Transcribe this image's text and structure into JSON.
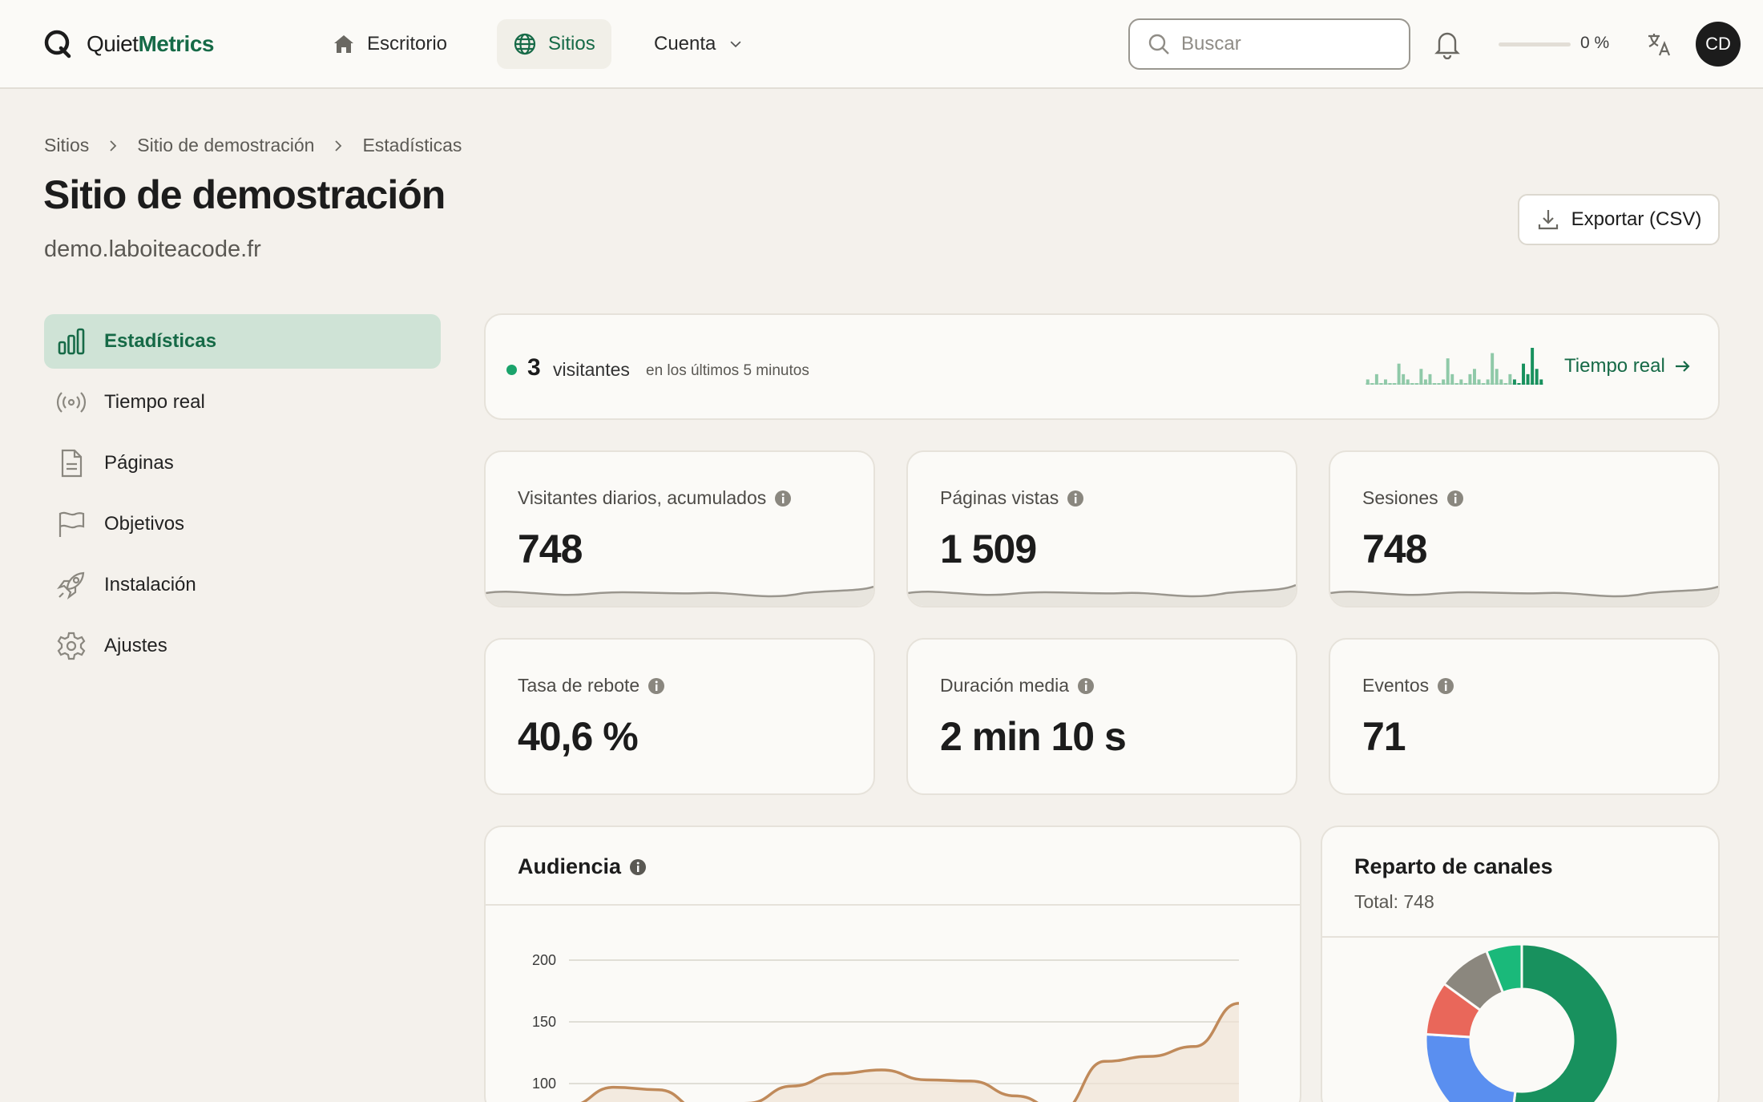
{
  "header": {
    "logo": {
      "prefix": "Quiet",
      "suffix": "Metrics"
    },
    "nav": [
      {
        "label": "Escritorio",
        "icon": "home-icon"
      },
      {
        "label": "Sitios",
        "icon": "globe-icon",
        "active": true
      },
      {
        "label": "Cuenta",
        "icon": "chevron-down-icon"
      }
    ],
    "search": {
      "placeholder": "Buscar",
      "value": ""
    },
    "progress": {
      "label": "0 %",
      "value": 0
    },
    "avatar": "CD"
  },
  "breadcrumb": [
    "Sitios",
    "Sitio de demostración",
    "Estadísticas"
  ],
  "page": {
    "title": "Sitio de demostración",
    "domain": "demo.laboiteacode.fr",
    "export_label": "Exportar (CSV)"
  },
  "sidebar": {
    "items": [
      {
        "label": "Estadísticas",
        "icon": "bar-chart-icon",
        "active": true
      },
      {
        "label": "Tiempo real",
        "icon": "broadcast-icon"
      },
      {
        "label": "Páginas",
        "icon": "document-icon"
      },
      {
        "label": "Objetivos",
        "icon": "flag-icon"
      },
      {
        "label": "Instalación",
        "icon": "rocket-icon"
      },
      {
        "label": "Ajustes",
        "icon": "gear-icon"
      }
    ]
  },
  "realtime": {
    "count": "3",
    "label": "visitantes",
    "sub": "en los últimos 5 minutos",
    "link": "Tiempo real",
    "bars": [
      1,
      0,
      2,
      0,
      1,
      0,
      0,
      4,
      2,
      1,
      0,
      0,
      3,
      1,
      2,
      0,
      0,
      1,
      5,
      2,
      0,
      1,
      0,
      2,
      3,
      1,
      0,
      1,
      6,
      3,
      1,
      0,
      2,
      1,
      0,
      4,
      2,
      7,
      3,
      1
    ]
  },
  "stats": [
    {
      "label": "Visitantes diarios, acumulados",
      "value": "748"
    },
    {
      "label": "Páginas vistas",
      "value": "1 509"
    },
    {
      "label": "Sesiones",
      "value": "748"
    },
    {
      "label": "Tasa de rebote",
      "value": "40,6 %"
    },
    {
      "label": "Duración media",
      "value": "2 min 10 s"
    },
    {
      "label": "Eventos",
      "value": "71"
    }
  ],
  "audience": {
    "title": "Audiencia",
    "chart_data": {
      "type": "area",
      "yticks": [
        200,
        150,
        100
      ],
      "ylim": [
        0,
        200
      ],
      "values": [
        82,
        97,
        95,
        78,
        84,
        98,
        108,
        111,
        103,
        102,
        90,
        78,
        118,
        122,
        130,
        165
      ]
    }
  },
  "channels": {
    "title": "Reparto de canales",
    "total": "Total: 748",
    "chart_data": {
      "type": "pie",
      "segments": [
        {
          "value": 0.52,
          "color": "#18915e"
        },
        {
          "value": 0.24,
          "color": "#5a8ff0"
        },
        {
          "value": 0.09,
          "color": "#e9675a"
        },
        {
          "value": 0.09,
          "color": "#8b877e"
        },
        {
          "value": 0.06,
          "color": "#1ab97a"
        }
      ]
    }
  }
}
